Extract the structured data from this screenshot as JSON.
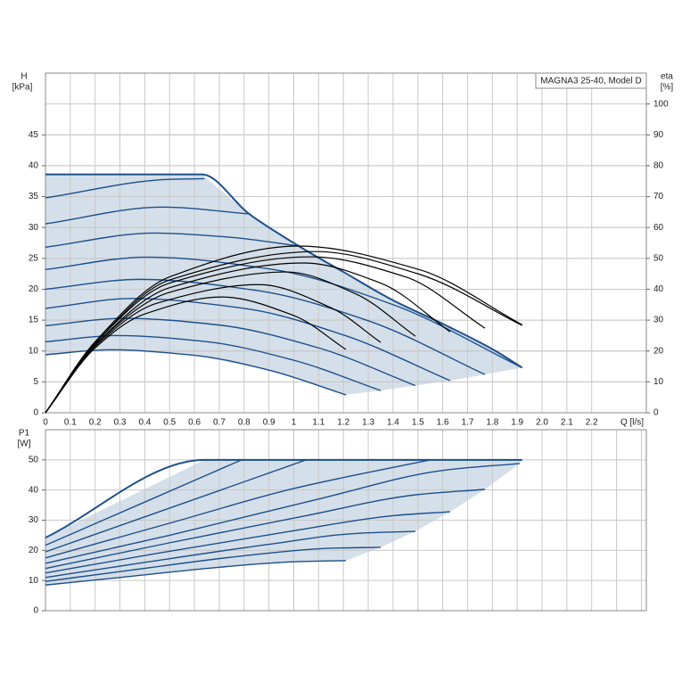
{
  "chart_data": [
    {
      "type": "line",
      "title": "MAGNA3 25-40, Model D",
      "ylabel": "H",
      "ylabel_unit": "[kPa]",
      "y2label": "eta",
      "y2label_unit": "[%]",
      "xlabel": "Q [l/s]",
      "xlim": [
        0,
        2.42
      ],
      "xticks": [
        0,
        0.1,
        0.2,
        0.3,
        0.4,
        0.5,
        0.6,
        0.7,
        0.8,
        0.9,
        1,
        1.1,
        1.2,
        1.3,
        1.4,
        1.5,
        1.6,
        1.7,
        1.8,
        1.9,
        {
          "value": 2,
          "label": "2.0"
        },
        2.1,
        2.2
      ],
      "ylim": [
        0,
        55
      ],
      "yticks": [
        0,
        5,
        10,
        15,
        20,
        25,
        30,
        35,
        40,
        45
      ],
      "y2lim": [
        0,
        110
      ],
      "y2ticks": [
        0,
        10,
        20,
        30,
        40,
        50,
        60,
        70,
        80,
        90,
        100
      ],
      "grid": true,
      "area_color": "#d5dfe9",
      "series": [
        {
          "color": "#1c4f8c",
          "x": [
            0,
            0.63,
            0.82,
            1.02,
            1.2,
            1.4,
            1.6,
            1.8,
            1.92
          ],
          "values": [
            38.6,
            38.6,
            32.2,
            27.0,
            22.8,
            18.2,
            14.4,
            10.3,
            7.3
          ]
        },
        {
          "color": "#1c4f8c",
          "x": [
            0,
            0.26,
            0.6,
            0.9,
            1.21
          ],
          "values": [
            9.4,
            10.2,
            9.3,
            6.9,
            2.9
          ]
        },
        {
          "color": "#1c4f8c",
          "x": [
            0,
            0.29,
            0.65,
            1.0,
            1.35
          ],
          "values": [
            11.5,
            12.5,
            11.5,
            8.5,
            3.6
          ]
        },
        {
          "color": "#1c4f8c",
          "x": [
            0,
            0.32,
            0.7,
            1.1,
            1.49
          ],
          "values": [
            14.1,
            15.3,
            14.2,
            10.5,
            4.4
          ]
        },
        {
          "color": "#1c4f8c",
          "x": [
            0,
            0.35,
            0.8,
            1.2,
            1.63
          ],
          "values": [
            16.9,
            18.5,
            16.9,
            12.6,
            5.2
          ]
        },
        {
          "color": "#1c4f8c",
          "x": [
            0,
            0.38,
            0.85,
            1.3,
            1.77
          ],
          "values": [
            20.0,
            21.6,
            19.8,
            14.9,
            6.2
          ]
        },
        {
          "color": "#1c4f8c",
          "x": [
            0,
            0.41,
            0.9,
            1.4,
            1.92
          ],
          "values": [
            23.2,
            25.2,
            23.3,
            17.5,
            7.3
          ]
        },
        {
          "color": "#1c4f8c",
          "x": [
            0,
            0.44,
            0.75,
            1.02
          ],
          "values": [
            26.8,
            29.1,
            28.4,
            27.0
          ]
        },
        {
          "color": "#1c4f8c",
          "x": [
            0,
            0.47,
            0.82
          ],
          "values": [
            30.6,
            33.3,
            32.2
          ]
        },
        {
          "color": "#1c4f8c",
          "x": [
            0,
            0.5,
            0.64
          ],
          "values": [
            34.8,
            37.8,
            37.9
          ]
        },
        {
          "color": "#000000",
          "axis": "y2",
          "x": [
            0,
            0.2,
            0.4,
            0.71,
            1.0,
            1.21
          ],
          "values": [
            0,
            21,
            32,
            37.5,
            31.5,
            20.5
          ]
        },
        {
          "color": "#000000",
          "axis": "y2",
          "x": [
            0,
            0.2,
            0.45,
            0.86,
            1.15,
            1.35
          ],
          "values": [
            0,
            21.5,
            35.5,
            41.5,
            34,
            22.8
          ]
        },
        {
          "color": "#000000",
          "axis": "y2",
          "x": [
            0,
            0.2,
            0.5,
            0.97,
            1.25,
            1.49
          ],
          "values": [
            0,
            22,
            39,
            45.6,
            38.5,
            24.8
          ]
        },
        {
          "color": "#000000",
          "axis": "y2",
          "x": [
            0,
            0.2,
            0.5,
            1.04,
            1.35,
            1.63
          ],
          "values": [
            0,
            22,
            40.5,
            48.5,
            42,
            26.2
          ]
        },
        {
          "color": "#000000",
          "axis": "y2",
          "x": [
            0,
            0.2,
            0.5,
            1.07,
            1.45,
            1.77
          ],
          "values": [
            0,
            22.5,
            42,
            50.5,
            44,
            27.4
          ]
        },
        {
          "color": "#000000",
          "axis": "y2",
          "x": [
            0,
            0.2,
            0.5,
            1.09,
            1.5,
            1.92
          ],
          "values": [
            0,
            22.5,
            43,
            52.2,
            45,
            28.3
          ]
        },
        {
          "color": "#000000",
          "axis": "y2",
          "x": [
            0,
            0.2,
            0.5,
            1.02,
            1.5,
            1.92
          ],
          "values": [
            0,
            23,
            44,
            54,
            46.5,
            28.5
          ]
        }
      ]
    },
    {
      "type": "line",
      "ylabel": "P1",
      "ylabel_unit": "[W]",
      "xlim": [
        0,
        2.42
      ],
      "xticks": [
        0,
        0.1,
        0.2,
        0.3,
        0.4,
        0.5,
        0.6,
        0.7,
        0.8,
        0.9,
        1,
        1.1,
        1.2,
        1.3,
        1.4,
        1.5,
        1.6,
        1.7,
        1.8,
        1.9,
        2,
        2.1,
        2.2,
        2.3,
        2.4
      ],
      "xtick_labels": false,
      "ylim": [
        0,
        60
      ],
      "yticks": [
        0,
        10,
        20,
        30,
        40,
        50
      ],
      "grid": true,
      "area_color": "#d5dfe9",
      "series": [
        {
          "color": "#1c4f8c",
          "x": [
            0,
            0.64,
            1.92
          ],
          "values": [
            24.2,
            50,
            50
          ]
        },
        {
          "color": "#1c4f8c",
          "x": [
            0,
            0.3,
            0.7,
            1.0,
            1.21
          ],
          "values": [
            8.5,
            11,
            14.4,
            16.2,
            16.6
          ]
        },
        {
          "color": "#1c4f8c",
          "x": [
            0,
            0.35,
            0.8,
            1.15,
            1.35
          ],
          "values": [
            9.7,
            13.5,
            18.2,
            20.7,
            21
          ]
        },
        {
          "color": "#1c4f8c",
          "x": [
            0,
            0.4,
            0.9,
            1.25,
            1.49
          ],
          "values": [
            11,
            16,
            22,
            25.6,
            26.3
          ]
        },
        {
          "color": "#1c4f8c",
          "x": [
            0,
            0.45,
            1.0,
            1.4,
            1.63
          ],
          "values": [
            12.5,
            19,
            26.5,
            31.5,
            32.8
          ]
        },
        {
          "color": "#1c4f8c",
          "x": [
            0,
            0.5,
            1.05,
            1.5,
            1.77
          ],
          "values": [
            14,
            22.5,
            31.5,
            38.5,
            40.2
          ]
        },
        {
          "color": "#1c4f8c",
          "x": [
            0,
            0.5,
            1.1,
            1.6,
            1.91
          ],
          "values": [
            15.7,
            25,
            37,
            46.5,
            48.8
          ]
        },
        {
          "color": "#1c4f8c",
          "x": [
            0,
            0.5,
            1.0,
            1.55
          ],
          "values": [
            17.5,
            29,
            40.5,
            50
          ]
        },
        {
          "color": "#1c4f8c",
          "x": [
            0,
            0.5,
            1.05
          ],
          "values": [
            19.5,
            34,
            50
          ]
        },
        {
          "color": "#1c4f8c",
          "x": [
            0,
            0.4,
            0.79
          ],
          "values": [
            21.7,
            36,
            50
          ]
        }
      ]
    }
  ]
}
